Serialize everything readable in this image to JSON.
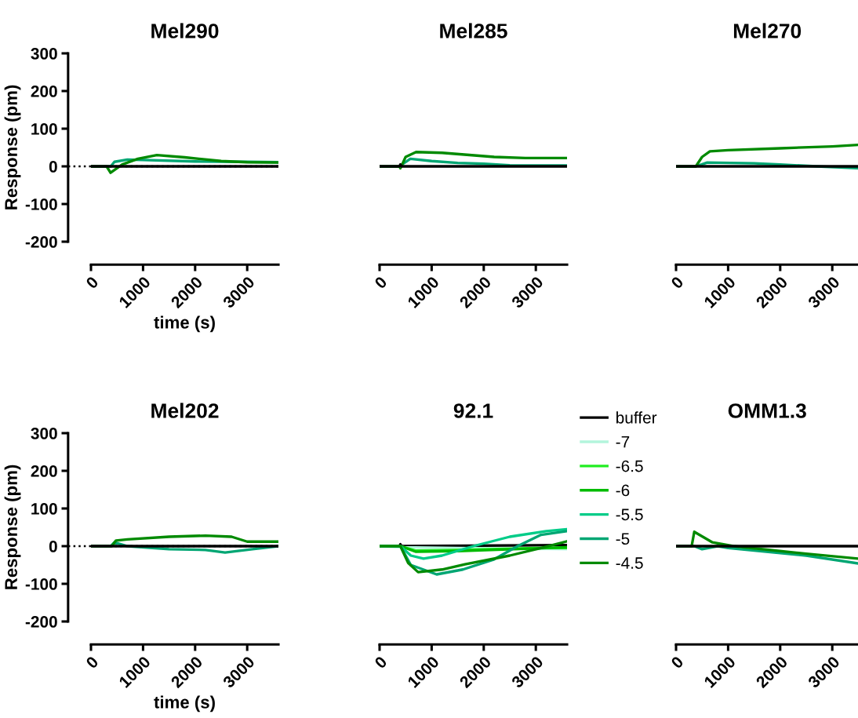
{
  "chart_data": [
    {
      "type": "line",
      "title": "Mel290",
      "xlabel": "time (s)",
      "ylabel": "Response (pm)",
      "xlim": [
        0,
        3600
      ],
      "ylim": [
        -200,
        300
      ],
      "xticks": [
        0,
        1000,
        2000,
        3000
      ],
      "yticks": [
        -200,
        -100,
        0,
        100,
        200,
        300
      ],
      "grid": false,
      "legend": false,
      "ref_lines": [
        {
          "axis": "y",
          "value": 0,
          "line_style": "dotted",
          "color": "#000000"
        }
      ],
      "series": [
        {
          "color": "#00a673",
          "x": [
            0,
            380,
            450,
            700,
            1000,
            2000,
            3000,
            3600
          ],
          "values": [
            0,
            0,
            12,
            18,
            17,
            13,
            12,
            11
          ]
        },
        {
          "color": "#008a00",
          "x": [
            0,
            300,
            376,
            600,
            900,
            1265,
            1800,
            2500,
            3000,
            3600
          ],
          "values": [
            0,
            0,
            -17,
            5,
            20,
            30,
            24,
            14,
            11,
            10
          ]
        },
        {
          "color": "#000000",
          "x": [
            0,
            3600
          ],
          "values": [
            0,
            0
          ]
        }
      ]
    },
    {
      "type": "line",
      "title": "Mel285",
      "xlim": [
        0,
        3600
      ],
      "ylim": [
        -200,
        300
      ],
      "xticks": [
        0,
        1000,
        2000,
        3000
      ],
      "tick_labels": "x",
      "grid": false,
      "legend": false,
      "series": [
        {
          "color": "#00a673",
          "x": [
            0,
            380,
            590,
            1000,
            1500,
            2000,
            2500,
            3600
          ],
          "values": [
            0,
            0,
            20,
            14,
            9,
            7,
            3,
            2
          ]
        },
        {
          "color": "#008a00",
          "x": [
            0,
            380,
            400,
            500,
            700,
            1200,
            2200,
            2800,
            3600
          ],
          "values": [
            0,
            0,
            -5,
            25,
            38,
            36,
            25,
            22,
            22
          ]
        },
        {
          "color": "#000000",
          "x": [
            0,
            380,
            400,
            420,
            3600
          ],
          "values": [
            0,
            0,
            5,
            0,
            0
          ]
        }
      ]
    },
    {
      "type": "line",
      "title": "Mel270",
      "xlim": [
        0,
        3500
      ],
      "ylim": [
        -200,
        300
      ],
      "xticks": [
        0,
        1000,
        2000,
        3000
      ],
      "tick_labels": "x",
      "grid": false,
      "legend": false,
      "series": [
        {
          "color": "#00a673",
          "x": [
            0,
            380,
            600,
            1500,
            2000,
            2700,
            3500
          ],
          "values": [
            0,
            0,
            10,
            8,
            5,
            0,
            -5
          ]
        },
        {
          "color": "#008a00",
          "x": [
            0,
            380,
            500,
            650,
            1000,
            2000,
            3000,
            3500
          ],
          "values": [
            0,
            0,
            25,
            40,
            43,
            48,
            53,
            57
          ]
        },
        {
          "color": "#000000",
          "x": [
            0,
            3500
          ],
          "values": [
            0,
            0
          ]
        }
      ]
    },
    {
      "type": "line",
      "title": "Mel202",
      "xlabel": "time (s)",
      "ylabel": "Response (pm)",
      "xlim": [
        0,
        3600
      ],
      "ylim": [
        -200,
        300
      ],
      "xticks": [
        0,
        1000,
        2000,
        3000
      ],
      "yticks": [
        -200,
        -100,
        0,
        100,
        200,
        300
      ],
      "grid": false,
      "legend": false,
      "ref_lines": [
        {
          "axis": "y",
          "value": 0,
          "line_style": "dotted",
          "color": "#000000"
        }
      ],
      "series": [
        {
          "color": "#00a673",
          "x": [
            0,
            380,
            450,
            700,
            1500,
            2200,
            2575,
            3100,
            3600
          ],
          "values": [
            0,
            0,
            10,
            0,
            -8,
            -10,
            -17,
            -8,
            0
          ]
        },
        {
          "color": "#008a00",
          "x": [
            0,
            400,
            480,
            700,
            1500,
            2200,
            2700,
            3000,
            3600
          ],
          "values": [
            0,
            0,
            15,
            18,
            25,
            28,
            25,
            12,
            12
          ]
        },
        {
          "color": "#000000",
          "x": [
            0,
            3600
          ],
          "values": [
            0,
            0
          ]
        }
      ]
    },
    {
      "type": "line",
      "title": "92.1",
      "xlim": [
        0,
        3600
      ],
      "ylim": [
        -200,
        300
      ],
      "xticks": [
        0,
        1000,
        2000,
        3000
      ],
      "tick_labels": "x",
      "grid": false,
      "legend": "right",
      "series": [
        {
          "name": "buffer",
          "color": "#000000",
          "x": [
            0,
            380,
            400,
            420,
            3600
          ],
          "values": [
            0,
            0,
            5,
            0,
            3
          ]
        },
        {
          "name": "-7",
          "color": "#b3f5dc",
          "x": [
            0,
            400,
            1500,
            3600
          ],
          "values": [
            0,
            -3,
            -5,
            -8
          ]
        },
        {
          "name": "-6.5",
          "color": "#22ee22",
          "x": [
            0,
            400,
            700,
            1500,
            3000,
            3600
          ],
          "values": [
            0,
            0,
            -12,
            -10,
            -5,
            -5
          ]
        },
        {
          "name": "-6",
          "color": "#00bb00",
          "x": [
            0,
            400,
            700,
            1500,
            3000,
            3600
          ],
          "values": [
            0,
            0,
            -15,
            -13,
            -6,
            -3
          ]
        },
        {
          "name": "-5.5",
          "color": "#00cc88",
          "x": [
            0,
            400,
            600,
            843,
            1200,
            1800,
            2500,
            3200,
            3600
          ],
          "values": [
            0,
            0,
            -25,
            -33,
            -25,
            0,
            25,
            40,
            45
          ]
        },
        {
          "name": "-5",
          "color": "#00a673",
          "x": [
            0,
            400,
            600,
            1095,
            1600,
            2200,
            2650,
            3100,
            3600
          ],
          "values": [
            0,
            0,
            -50,
            -75,
            -62,
            -35,
            0,
            30,
            40
          ]
        },
        {
          "name": "-4.5",
          "color": "#008a00",
          "x": [
            0,
            400,
            550,
            740,
            1200,
            1640,
            2500,
            3100,
            3600
          ],
          "values": [
            0,
            0,
            -45,
            -69,
            -62,
            -48,
            -25,
            -5,
            13
          ]
        }
      ]
    },
    {
      "type": "line",
      "title": "OMM1.3",
      "xlim": [
        0,
        3500
      ],
      "ylim": [
        -200,
        300
      ],
      "xticks": [
        0,
        1000,
        2000,
        3000
      ],
      "tick_labels": "x",
      "grid": false,
      "legend": false,
      "series": [
        {
          "color": "#00a673",
          "x": [
            0,
            350,
            500,
            800,
            1000,
            2500,
            3500
          ],
          "values": [
            0,
            0,
            -8,
            0,
            -5,
            -25,
            -46
          ]
        },
        {
          "color": "#008a00",
          "x": [
            0,
            300,
            350,
            700,
            1100,
            2500,
            3500
          ],
          "values": [
            0,
            0,
            38,
            10,
            0,
            -20,
            -33
          ]
        },
        {
          "color": "#000000",
          "x": [
            0,
            3500
          ],
          "values": [
            0,
            0
          ]
        }
      ]
    }
  ]
}
